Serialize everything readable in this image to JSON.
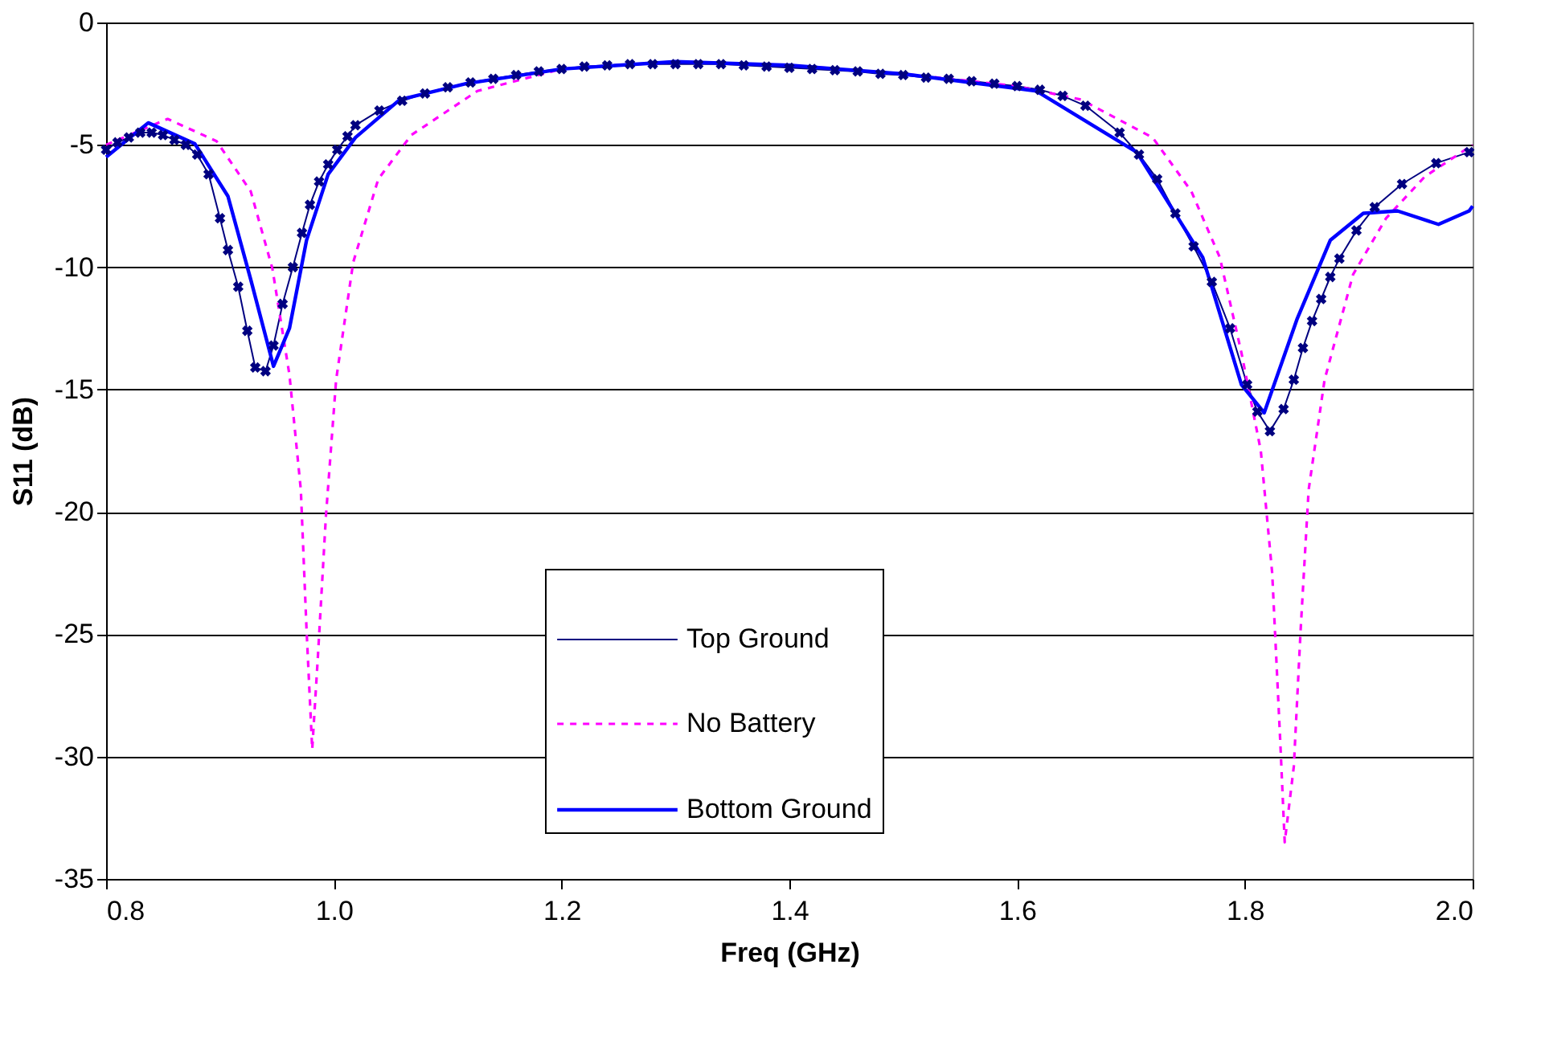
{
  "chart_data": {
    "type": "line",
    "xlabel": "Freq (GHz)",
    "ylabel": "S11 (dB)",
    "xlim": [
      0.8,
      2.0
    ],
    "ylim": [
      -35,
      0
    ],
    "xticks": [
      0.8,
      {
        "value": 1.0,
        "label": "1.0"
      },
      1.2,
      1.4,
      1.6,
      1.8,
      {
        "value": 2.0,
        "label": "2.0"
      }
    ],
    "yticks": [
      -35,
      -30,
      -25,
      -20,
      -15,
      -10,
      -5,
      0
    ],
    "grid": "y",
    "legend": "bottom",
    "series": [
      {
        "name": "Top Ground",
        "color": "#000080",
        "marker": "cross",
        "line_style": "solid",
        "x": [
          0.8,
          0.81,
          0.82,
          0.83,
          0.84,
          0.85,
          0.86,
          0.87,
          0.88,
          0.89,
          0.9,
          0.907,
          0.916,
          0.924,
          0.931,
          0.94,
          0.947,
          0.955,
          0.964,
          0.972,
          0.979,
          0.987,
          0.995,
          1.003,
          1.012,
          1.019,
          1.04,
          1.06,
          1.08,
          1.1,
          1.12,
          1.14,
          1.16,
          1.18,
          1.2,
          1.22,
          1.24,
          1.26,
          1.28,
          1.3,
          1.32,
          1.34,
          1.36,
          1.38,
          1.4,
          1.42,
          1.44,
          1.46,
          1.48,
          1.5,
          1.52,
          1.54,
          1.56,
          1.58,
          1.6,
          1.62,
          1.64,
          1.66,
          1.69,
          1.707,
          1.723,
          1.739,
          1.755,
          1.771,
          1.787,
          1.802,
          1.811,
          1.822,
          1.834,
          1.843,
          1.851,
          1.859,
          1.867,
          1.875,
          1.883,
          1.898,
          1.914,
          1.938,
          1.968,
          1.997
        ],
        "values": [
          -5.2,
          -4.9,
          -4.7,
          -4.5,
          -4.5,
          -4.6,
          -4.8,
          -5.0,
          -5.4,
          -6.2,
          -8.0,
          -9.3,
          -10.8,
          -12.6,
          -14.1,
          -14.25,
          -13.2,
          -11.5,
          -10.0,
          -8.6,
          -7.45,
          -6.5,
          -5.8,
          -5.2,
          -4.65,
          -4.2,
          -3.6,
          -3.2,
          -2.9,
          -2.65,
          -2.45,
          -2.3,
          -2.15,
          -2.0,
          -1.9,
          -1.8,
          -1.75,
          -1.7,
          -1.7,
          -1.7,
          -1.7,
          -1.7,
          -1.75,
          -1.8,
          -1.85,
          -1.9,
          -1.95,
          -2.0,
          -2.1,
          -2.15,
          -2.25,
          -2.3,
          -2.4,
          -2.5,
          -2.6,
          -2.75,
          -3.0,
          -3.4,
          -4.5,
          -5.4,
          -6.4,
          -7.8,
          -9.15,
          -10.6,
          -12.5,
          -14.8,
          -15.9,
          -16.7,
          -15.8,
          -14.6,
          -13.3,
          -12.2,
          -11.3,
          -10.4,
          -9.65,
          -8.5,
          -7.55,
          -6.6,
          -5.75,
          -5.3
        ]
      },
      {
        "name": "No Battery",
        "color": "#ff00ff",
        "marker": "none",
        "line_style": "dotted",
        "x": [
          0.8,
          0.854,
          0.897,
          0.927,
          0.946,
          0.961,
          0.971,
          0.976,
          0.981,
          0.986,
          0.993,
          1.002,
          1.017,
          1.039,
          1.068,
          1.126,
          1.2,
          1.3,
          1.4,
          1.5,
          1.6,
          1.656,
          1.719,
          1.753,
          1.778,
          1.797,
          1.814,
          1.824,
          1.831,
          1.835,
          1.843,
          1.849,
          1.856,
          1.87,
          1.895,
          1.924,
          1.958,
          2.0
        ],
        "values": [
          -5.0,
          -3.94,
          -4.85,
          -6.9,
          -10.05,
          -14.4,
          -19.1,
          -24.8,
          -29.7,
          -25.9,
          -20.2,
          -14.6,
          -9.8,
          -6.4,
          -4.6,
          -2.8,
          -1.9,
          -1.6,
          -1.75,
          -2.1,
          -2.6,
          -3.15,
          -4.7,
          -6.9,
          -9.6,
          -13.5,
          -17.5,
          -22.5,
          -29.3,
          -33.5,
          -30.4,
          -24.8,
          -19.1,
          -14.6,
          -10.3,
          -8.0,
          -6.3,
          -5.0
        ]
      },
      {
        "name": "Bottom Ground",
        "color": "#0000ff",
        "marker": "none",
        "line_style": "solid",
        "x": [
          0.8,
          0.837,
          0.878,
          0.907,
          0.927,
          0.947,
          0.961,
          0.976,
          0.995,
          1.019,
          1.058,
          1.116,
          1.2,
          1.3,
          1.4,
          1.5,
          1.617,
          1.705,
          1.763,
          1.797,
          1.817,
          1.846,
          1.875,
          1.904,
          1.934,
          1.97,
          1.997,
          2.0
        ],
        "values": [
          -5.5,
          -4.1,
          -4.96,
          -7.1,
          -10.5,
          -14.05,
          -12.5,
          -8.9,
          -6.2,
          -4.7,
          -3.15,
          -2.5,
          -1.9,
          -1.6,
          -1.75,
          -2.1,
          -2.8,
          -5.3,
          -9.6,
          -14.8,
          -15.95,
          -12.1,
          -8.9,
          -7.8,
          -7.7,
          -8.25,
          -7.7,
          -7.5
        ]
      }
    ]
  }
}
